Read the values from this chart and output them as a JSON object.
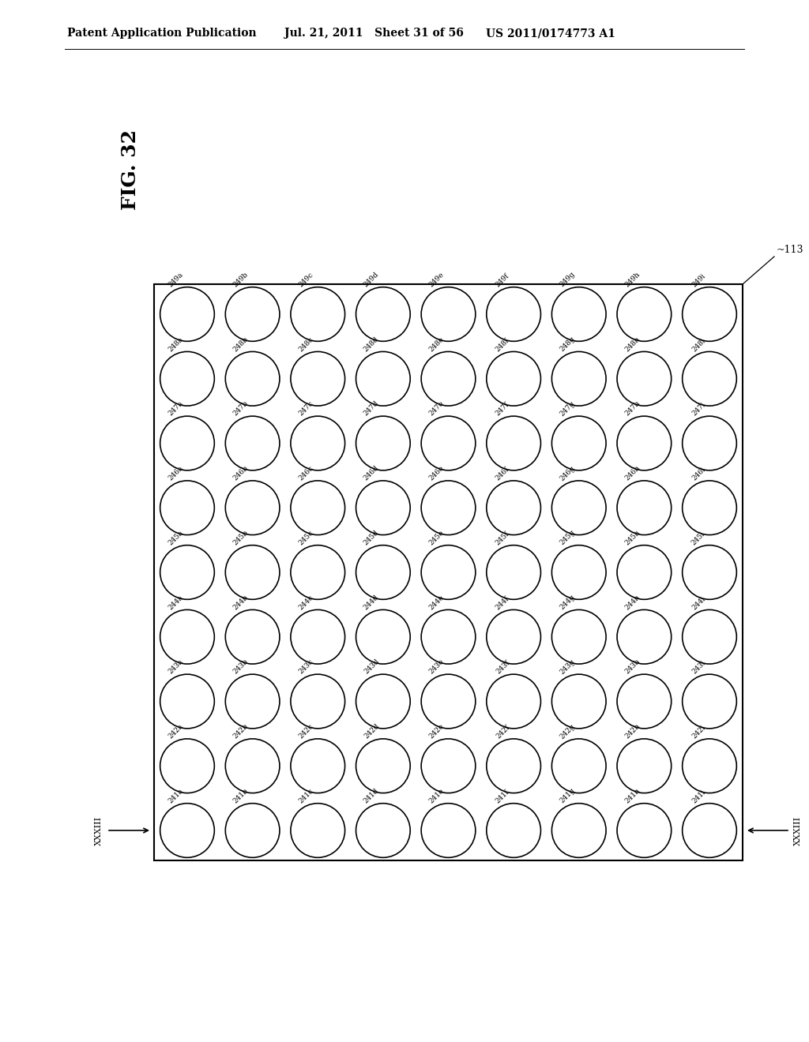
{
  "fig_label": "FIG. 32",
  "header_left": "Patent Application Publication",
  "header_mid": "Jul. 21, 2011   Sheet 31 of 56",
  "header_right": "US 2011/0174773 A1",
  "box_ref": "113",
  "left_arrow_label": "XXXIII",
  "right_arrow_label": "XXXIII",
  "background_color": "#ffffff",
  "circle_facecolor": "#ffffff",
  "circle_edgecolor": "#000000",
  "num_rows": 9,
  "num_cols": 9,
  "row_base_numbers": [
    241,
    242,
    243,
    244,
    245,
    246,
    247,
    248,
    249
  ],
  "col_suffixes": [
    "a",
    "b",
    "c",
    "d",
    "e",
    "f",
    "g",
    "h",
    "i"
  ],
  "font_size_header": 10,
  "font_size_label": 6.5,
  "font_size_fig": 18,
  "font_size_ref": 9
}
